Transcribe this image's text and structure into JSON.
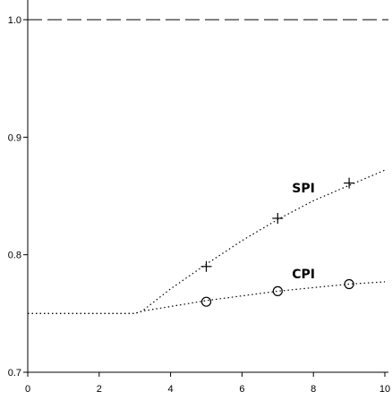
{
  "chart_data": {
    "type": "line",
    "title": "",
    "xlabel": "",
    "ylabel": "",
    "xlim": [
      0,
      10
    ],
    "ylim": [
      0.7,
      1.02
    ],
    "grid": false,
    "x_ticks": [
      0,
      2,
      4,
      6,
      8,
      10
    ],
    "x_tick_labels": [
      "0",
      "2",
      "4",
      "6",
      "8",
      "10"
    ],
    "y_ticks": [
      0.7,
      0.8,
      0.9,
      1.0
    ],
    "y_tick_labels": [
      "0.7",
      "0.8",
      "0.9",
      "1.0"
    ],
    "reference_line": {
      "y": 1.0,
      "style": "dashed"
    },
    "series": [
      {
        "name": "SPI",
        "line_style": "dotted",
        "color": "#000000",
        "marker": "plus",
        "curve": {
          "x": [
            0,
            1,
            2,
            3,
            3.2,
            4,
            5,
            6,
            7,
            8,
            9,
            10
          ],
          "y": [
            0.75,
            0.75,
            0.75,
            0.75,
            0.752,
            0.771,
            0.792,
            0.812,
            0.83,
            0.846,
            0.859,
            0.872
          ]
        },
        "points": {
          "x": [
            5,
            7,
            9
          ],
          "y": [
            0.79,
            0.831,
            0.861
          ]
        }
      },
      {
        "name": "CPI",
        "line_style": "dotted",
        "color": "#000000",
        "marker": "circle",
        "curve": {
          "x": [
            0,
            1,
            2,
            3,
            3.2,
            4,
            5,
            6,
            7,
            8,
            9,
            10
          ],
          "y": [
            0.75,
            0.75,
            0.75,
            0.75,
            0.752,
            0.756,
            0.761,
            0.765,
            0.769,
            0.772,
            0.775,
            0.777
          ]
        },
        "points": {
          "x": [
            5,
            7,
            9
          ],
          "y": [
            0.76,
            0.769,
            0.775
          ]
        }
      }
    ]
  }
}
